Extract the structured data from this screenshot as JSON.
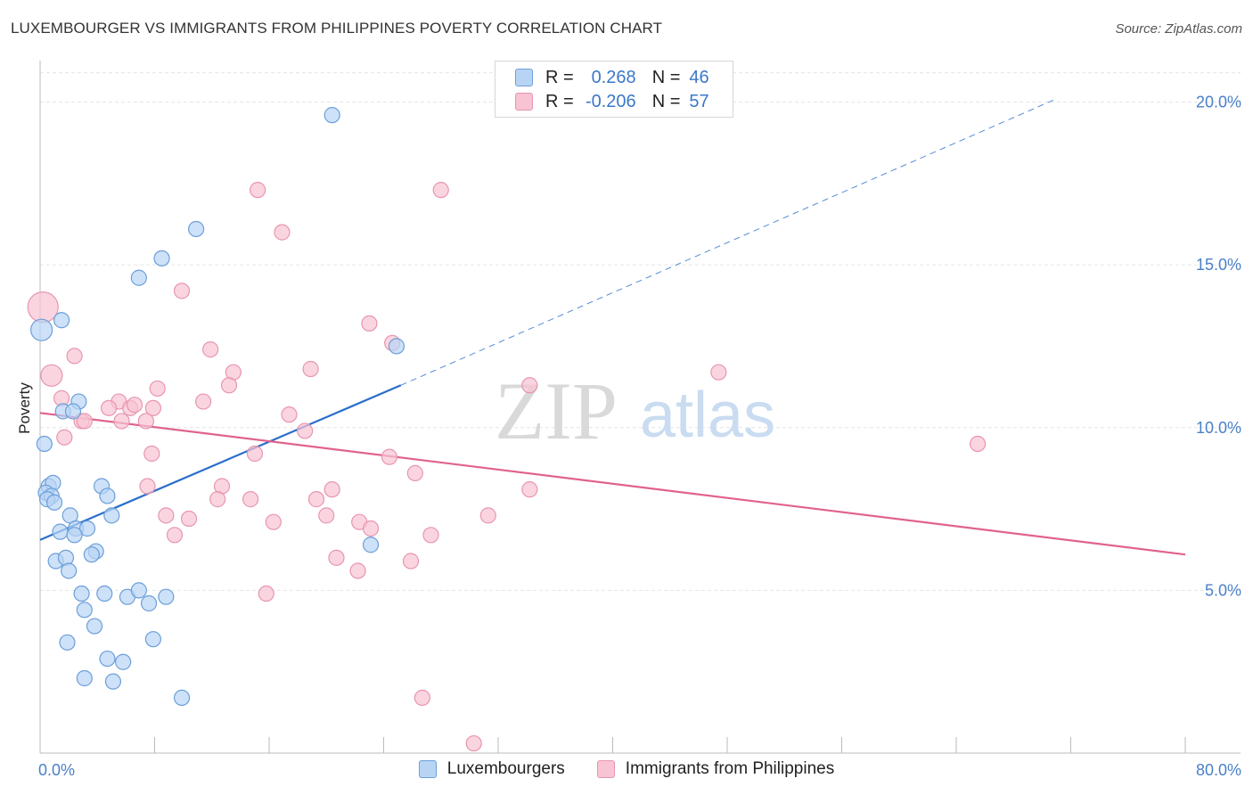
{
  "title": "LUXEMBOURGER VS IMMIGRANTS FROM PHILIPPINES POVERTY CORRELATION CHART",
  "source": "Source: ZipAtlas.com",
  "watermark": {
    "zip": "ZIP",
    "atlas": "atlas"
  },
  "colors": {
    "blue_fill": "#b8d4f5",
    "blue_stroke": "#6c9fd9",
    "blue_line": "#2a6fcb",
    "pink_fill": "#f8c3d3",
    "pink_stroke": "#e895b0",
    "pink_line": "#e0628f",
    "grid": "#e6e6e6",
    "tick_label": "#4a80c8"
  },
  "legend": {
    "rows": [
      {
        "r_label": "R =",
        "r_value": "0.268",
        "n_label": "N =",
        "n_value": "46"
      },
      {
        "r_label": "R =",
        "r_value": "-0.206",
        "n_label": "N =",
        "n_value": "57"
      }
    ]
  },
  "bottom_legend": [
    "Luxembourgers",
    "Immigrants from Philippines"
  ],
  "chart_data": {
    "type": "scatter",
    "title": "LUXEMBOURGER VS IMMIGRANTS FROM PHILIPPINES POVERTY CORRELATION CHART",
    "xlabel": "",
    "ylabel": "Poverty",
    "xlim": [
      0,
      80
    ],
    "ylim": [
      0,
      21
    ],
    "x_tick_labels": [
      "0.0%",
      "80.0%"
    ],
    "y_ticks": [
      5,
      10,
      15,
      20
    ],
    "y_tick_labels": [
      "5.0%",
      "10.0%",
      "15.0%",
      "20.0%"
    ],
    "grid": true,
    "legend_position": "top-center",
    "series": [
      {
        "name": "Luxembourgers",
        "r": 0.268,
        "n": 46,
        "trend": {
          "x": [
            0,
            25.2
          ],
          "y": [
            6.55,
            11.3
          ],
          "extended_to": [
            71,
            20.1
          ]
        },
        "points": [
          [
            20.4,
            19.6
          ],
          [
            10.9,
            16.1
          ],
          [
            8.5,
            15.2
          ],
          [
            6.9,
            14.6
          ],
          [
            1.5,
            13.3
          ],
          [
            0.1,
            13.0
          ],
          [
            24.9,
            12.5
          ],
          [
            2.7,
            10.8
          ],
          [
            1.6,
            10.5
          ],
          [
            2.3,
            10.5
          ],
          [
            0.3,
            9.5
          ],
          [
            0.6,
            8.2
          ],
          [
            0.9,
            8.3
          ],
          [
            0.4,
            8.0
          ],
          [
            0.8,
            7.9
          ],
          [
            4.3,
            8.2
          ],
          [
            4.7,
            7.9
          ],
          [
            0.5,
            7.8
          ],
          [
            1.0,
            7.7
          ],
          [
            2.1,
            7.3
          ],
          [
            5.0,
            7.3
          ],
          [
            1.4,
            6.8
          ],
          [
            2.5,
            6.9
          ],
          [
            3.3,
            6.9
          ],
          [
            2.4,
            6.7
          ],
          [
            3.9,
            6.2
          ],
          [
            3.6,
            6.1
          ],
          [
            1.1,
            5.9
          ],
          [
            1.8,
            6.0
          ],
          [
            2.0,
            5.6
          ],
          [
            23.1,
            6.4
          ],
          [
            2.9,
            4.9
          ],
          [
            4.5,
            4.9
          ],
          [
            6.1,
            4.8
          ],
          [
            6.9,
            5.0
          ],
          [
            8.8,
            4.8
          ],
          [
            7.6,
            4.6
          ],
          [
            3.1,
            4.4
          ],
          [
            3.8,
            3.9
          ],
          [
            1.9,
            3.4
          ],
          [
            7.9,
            3.5
          ],
          [
            4.7,
            2.9
          ],
          [
            5.8,
            2.8
          ],
          [
            3.1,
            2.3
          ],
          [
            5.1,
            2.2
          ],
          [
            9.9,
            1.7
          ]
        ]
      },
      {
        "name": "Immigrants from Philippines",
        "r": -0.206,
        "n": 57,
        "trend": {
          "x": [
            0,
            80
          ],
          "y": [
            10.45,
            6.1
          ]
        },
        "points": [
          [
            0.2,
            13.7
          ],
          [
            0.8,
            11.6
          ],
          [
            2.4,
            12.2
          ],
          [
            1.5,
            10.9
          ],
          [
            1.7,
            9.7
          ],
          [
            15.2,
            17.3
          ],
          [
            28.0,
            17.3
          ],
          [
            16.9,
            16.0
          ],
          [
            9.9,
            14.2
          ],
          [
            23.0,
            13.2
          ],
          [
            11.9,
            12.4
          ],
          [
            24.6,
            12.6
          ],
          [
            18.9,
            11.8
          ],
          [
            47.4,
            11.7
          ],
          [
            13.5,
            11.7
          ],
          [
            13.2,
            11.3
          ],
          [
            8.2,
            11.2
          ],
          [
            34.2,
            11.3
          ],
          [
            11.4,
            10.8
          ],
          [
            5.5,
            10.8
          ],
          [
            4.8,
            10.6
          ],
          [
            7.9,
            10.6
          ],
          [
            6.3,
            10.6
          ],
          [
            17.4,
            10.4
          ],
          [
            2.9,
            10.2
          ],
          [
            3.1,
            10.2
          ],
          [
            5.7,
            10.2
          ],
          [
            7.4,
            10.2
          ],
          [
            18.5,
            9.9
          ],
          [
            15.0,
            9.2
          ],
          [
            7.8,
            9.2
          ],
          [
            24.4,
            9.1
          ],
          [
            65.5,
            9.5
          ],
          [
            26.2,
            8.6
          ],
          [
            12.7,
            8.2
          ],
          [
            7.5,
            8.2
          ],
          [
            20.4,
            8.1
          ],
          [
            34.2,
            8.1
          ],
          [
            12.4,
            7.8
          ],
          [
            14.7,
            7.8
          ],
          [
            19.3,
            7.8
          ],
          [
            8.8,
            7.3
          ],
          [
            10.4,
            7.2
          ],
          [
            20.0,
            7.3
          ],
          [
            31.3,
            7.3
          ],
          [
            16.3,
            7.1
          ],
          [
            22.3,
            7.1
          ],
          [
            23.1,
            6.9
          ],
          [
            9.4,
            6.7
          ],
          [
            27.3,
            6.7
          ],
          [
            20.7,
            6.0
          ],
          [
            25.9,
            5.9
          ],
          [
            22.2,
            5.6
          ],
          [
            15.8,
            4.9
          ],
          [
            26.7,
            1.7
          ],
          [
            30.3,
            0.3
          ],
          [
            6.6,
            10.7
          ]
        ]
      }
    ]
  }
}
